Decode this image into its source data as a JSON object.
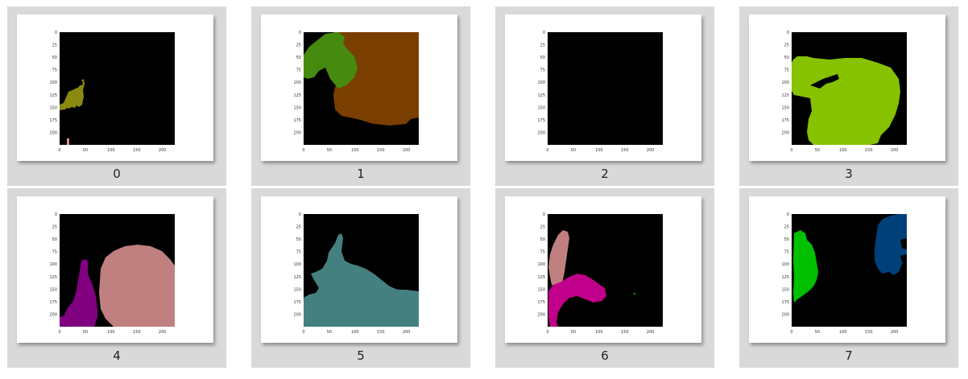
{
  "panels": [
    {
      "caption": "0",
      "mask_color": "#8a8a10"
    },
    {
      "caption": "1",
      "mask_color": "#7a3e00",
      "mask_color_2": "#478a10"
    },
    {
      "caption": "2"
    },
    {
      "caption": "3",
      "mask_color": "#86c200"
    },
    {
      "caption": "4",
      "mask_color": "#c08080",
      "mask_color_2": "#800080"
    },
    {
      "caption": "5",
      "mask_color": "#458080"
    },
    {
      "caption": "6",
      "mask_color": "#c08080",
      "mask_color_2": "#c0008a"
    },
    {
      "caption": "7",
      "mask_color": "#00c000",
      "mask_color_2": "#00407a"
    }
  ],
  "axes": {
    "y_ticks": [
      "0",
      "25",
      "50",
      "75",
      "100",
      "125",
      "150",
      "175",
      "200"
    ],
    "x_ticks": [
      "0",
      "50",
      "100",
      "150",
      "200"
    ]
  }
}
